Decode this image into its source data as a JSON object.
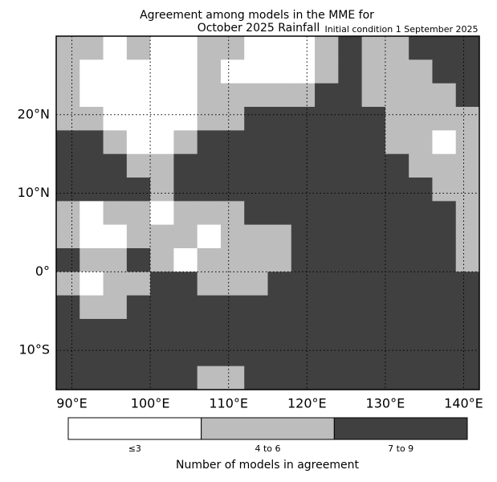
{
  "chart_data": {
    "type": "grid_map",
    "title": "Agreement among models in the MME for",
    "subtitle": "October 2025  Rainfall",
    "annotation": "Initial condition 1 September 2025",
    "xlim": [
      88,
      142
    ],
    "ylim": [
      -15,
      30
    ],
    "xticks": [
      {
        "value": 90,
        "label": "90°E"
      },
      {
        "value": 100,
        "label": "100°E"
      },
      {
        "value": 110,
        "label": "110°E"
      },
      {
        "value": 120,
        "label": "120°E"
      },
      {
        "value": 130,
        "label": "130°E"
      },
      {
        "value": 140,
        "label": "140°E"
      }
    ],
    "yticks": [
      {
        "value": 20,
        "label": "20°N"
      },
      {
        "value": 10,
        "label": "10°N"
      },
      {
        "value": 0,
        "label": "0°"
      },
      {
        "value": -10,
        "label": "10°S"
      }
    ],
    "grid": true,
    "legend": {
      "title": "Number of models in agreement",
      "entries": [
        {
          "label": "≤3",
          "color": "#ffffff"
        },
        {
          "label": "4 to 6",
          "color": "#bdbdbd"
        },
        {
          "label": "7 to 9",
          "color": "#404040"
        }
      ]
    },
    "cells": [
      [
        1,
        1,
        0,
        1,
        0,
        0,
        1,
        1,
        0,
        0,
        0,
        1,
        2,
        1,
        1,
        2,
        2,
        2
      ],
      [
        1,
        0,
        0,
        0,
        0,
        0,
        1,
        0,
        0,
        0,
        0,
        1,
        2,
        1,
        1,
        1,
        2,
        2
      ],
      [
        1,
        0,
        0,
        0,
        0,
        0,
        1,
        1,
        1,
        1,
        1,
        2,
        2,
        1,
        1,
        1,
        1,
        2
      ],
      [
        1,
        1,
        0,
        0,
        0,
        0,
        1,
        1,
        2,
        2,
        2,
        2,
        2,
        2,
        1,
        1,
        1,
        1
      ],
      [
        2,
        2,
        1,
        0,
        0,
        1,
        2,
        2,
        2,
        2,
        2,
        2,
        2,
        2,
        1,
        1,
        0,
        1
      ],
      [
        2,
        2,
        2,
        1,
        1,
        2,
        2,
        2,
        2,
        2,
        2,
        2,
        2,
        2,
        2,
        1,
        1,
        1
      ],
      [
        2,
        2,
        2,
        2,
        1,
        2,
        2,
        2,
        2,
        2,
        2,
        2,
        2,
        2,
        2,
        2,
        1,
        1
      ],
      [
        1,
        0,
        1,
        1,
        0,
        1,
        1,
        1,
        2,
        2,
        2,
        2,
        2,
        2,
        2,
        2,
        2,
        1
      ],
      [
        1,
        0,
        0,
        1,
        1,
        1,
        0,
        1,
        1,
        1,
        2,
        2,
        2,
        2,
        2,
        2,
        2,
        1
      ],
      [
        2,
        1,
        1,
        2,
        1,
        0,
        1,
        1,
        1,
        1,
        2,
        2,
        2,
        2,
        2,
        2,
        2,
        1
      ],
      [
        1,
        0,
        1,
        1,
        2,
        2,
        1,
        1,
        1,
        2,
        2,
        2,
        2,
        2,
        2,
        2,
        2,
        2
      ],
      [
        2,
        1,
        1,
        2,
        2,
        2,
        2,
        2,
        2,
        2,
        2,
        2,
        2,
        2,
        2,
        2,
        2,
        2
      ],
      [
        2,
        2,
        2,
        2,
        2,
        2,
        2,
        2,
        2,
        2,
        2,
        2,
        2,
        2,
        2,
        2,
        2,
        2
      ],
      [
        2,
        2,
        2,
        2,
        2,
        2,
        2,
        2,
        2,
        2,
        2,
        2,
        2,
        2,
        2,
        2,
        2,
        2
      ],
      [
        2,
        2,
        2,
        2,
        2,
        2,
        1,
        1,
        2,
        2,
        2,
        2,
        2,
        2,
        2,
        2,
        2,
        2
      ]
    ]
  }
}
